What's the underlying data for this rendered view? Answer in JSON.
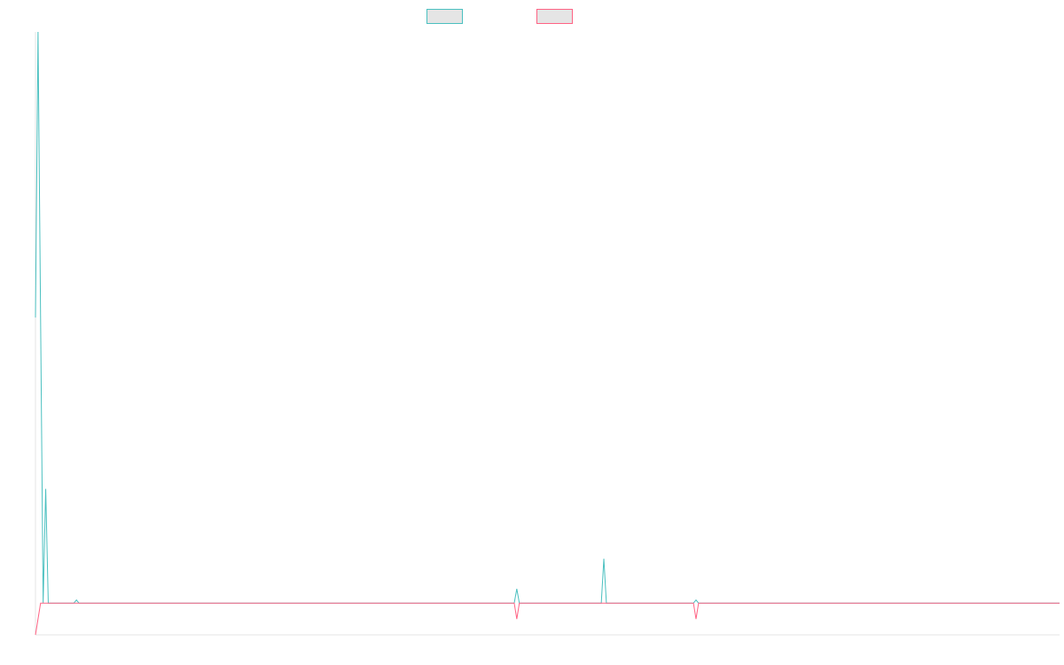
{
  "chart_data": {
    "type": "line",
    "title": "",
    "xlabel": "",
    "ylabel": "",
    "ylim": [
      -1,
      18
    ],
    "grid": false,
    "legend": "top-center",
    "series": [
      {
        "color": "#4bc0c0",
        "fill": "#e5e5e5",
        "points": [
          [
            0,
            9
          ],
          [
            1,
            18
          ],
          [
            3,
            0
          ],
          [
            4,
            3.6
          ],
          [
            5,
            0
          ],
          [
            15,
            0
          ],
          [
            16,
            0.1
          ],
          [
            17,
            0
          ],
          [
            187,
            0
          ],
          [
            188,
            0.45
          ],
          [
            189,
            0
          ],
          [
            221,
            0
          ],
          [
            222,
            1.4
          ],
          [
            223,
            0
          ],
          [
            257,
            0
          ],
          [
            258,
            0.1
          ],
          [
            259,
            0
          ],
          [
            400,
            0
          ]
        ]
      },
      {
        "color": "#ff6384",
        "fill": "#e5e5e5",
        "points": [
          [
            0,
            -1
          ],
          [
            2,
            0
          ],
          [
            3,
            0
          ],
          [
            187,
            0
          ],
          [
            188,
            -0.5
          ],
          [
            189,
            0
          ],
          [
            257,
            0
          ],
          [
            258,
            -0.5
          ],
          [
            259,
            0
          ],
          [
            400,
            0
          ]
        ]
      }
    ]
  }
}
